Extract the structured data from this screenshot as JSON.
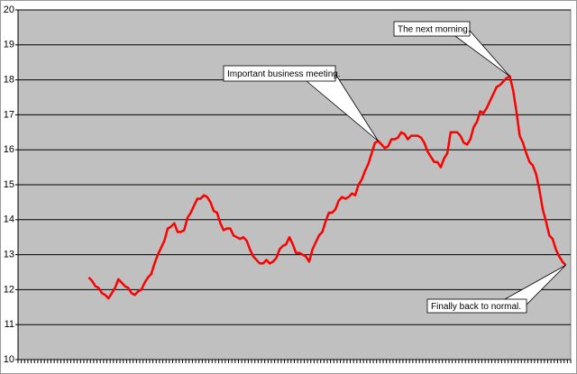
{
  "chart_data": {
    "type": "line",
    "categories": [
      null,
      null,
      null,
      null,
      null,
      null,
      null,
      null,
      null,
      null,
      null,
      null,
      null,
      null,
      null,
      null,
      null,
      null,
      null,
      null,
      null,
      null,
      null,
      null,
      null,
      null,
      null,
      null,
      null,
      null,
      null,
      null,
      null,
      null,
      null,
      null,
      null,
      null,
      null,
      null,
      null,
      null,
      null,
      null,
      null,
      null,
      null,
      null,
      null,
      null,
      null,
      null,
      null,
      null,
      null,
      null,
      null,
      null,
      null,
      null,
      null,
      null,
      null,
      null,
      null,
      null,
      null,
      null,
      null,
      null,
      null,
      null,
      null,
      null,
      null,
      null,
      null,
      null,
      null,
      null,
      null,
      null,
      null,
      null,
      null,
      null,
      null,
      null,
      null,
      null,
      null,
      null,
      null,
      null,
      null,
      null,
      null,
      null,
      null,
      null,
      null,
      null,
      null,
      null,
      null,
      null,
      null,
      null,
      null,
      null,
      null,
      null,
      null,
      null,
      null,
      null,
      null,
      null,
      null,
      null,
      null,
      null,
      null,
      null,
      null,
      null,
      null,
      null,
      null,
      null,
      null,
      null,
      null,
      null,
      null,
      null,
      null,
      null,
      null,
      null,
      null,
      null,
      null,
      null,
      null,
      null,
      null,
      null,
      null,
      null,
      null,
      null,
      null,
      null,
      null,
      null,
      null,
      null,
      null,
      null,
      null,
      null,
      null,
      null,
      null,
      null,
      null,
      null
    ],
    "values": [
      null,
      null,
      null,
      null,
      null,
      null,
      null,
      null,
      null,
      null,
      null,
      null,
      null,
      null,
      null,
      null,
      null,
      null,
      null,
      null,
      null,
      12.35,
      12.25,
      12.1,
      12.05,
      11.9,
      11.85,
      11.75,
      11.9,
      12.05,
      12.3,
      12.2,
      12.1,
      12.05,
      11.9,
      11.85,
      11.95,
      12.0,
      12.2,
      12.35,
      12.45,
      12.75,
      13.0,
      13.2,
      13.4,
      13.75,
      13.8,
      13.9,
      13.65,
      13.65,
      13.7,
      14.05,
      14.2,
      14.4,
      14.6,
      14.6,
      14.7,
      14.65,
      14.5,
      14.25,
      14.2,
      13.9,
      13.7,
      13.75,
      13.75,
      13.55,
      13.5,
      13.45,
      13.5,
      13.4,
      13.15,
      12.95,
      12.85,
      12.75,
      12.75,
      12.85,
      12.75,
      12.8,
      12.9,
      13.15,
      13.25,
      13.3,
      13.5,
      13.3,
      13.05,
      13.05,
      13.0,
      12.95,
      12.8,
      13.15,
      13.35,
      13.55,
      13.65,
      13.95,
      14.2,
      14.2,
      14.3,
      14.55,
      14.65,
      14.6,
      14.65,
      14.75,
      14.7,
      15.0,
      15.15,
      15.4,
      15.6,
      15.9,
      16.2,
      16.25,
      16.15,
      16.05,
      16.1,
      16.3,
      16.3,
      16.35,
      16.5,
      16.45,
      16.3,
      16.4,
      16.4,
      16.4,
      16.35,
      16.2,
      15.95,
      15.8,
      15.65,
      15.65,
      15.5,
      15.75,
      15.9,
      16.5,
      16.5,
      16.5,
      16.4,
      16.2,
      16.15,
      16.3,
      16.65,
      16.8,
      17.1,
      17.05,
      17.2,
      17.4,
      17.6,
      17.8,
      17.85,
      17.95,
      18.05,
      18.1,
      17.7,
      17.1,
      16.4,
      16.2,
      15.9,
      15.65,
      15.55,
      15.3,
      14.85,
      14.3,
      13.95,
      13.55,
      13.45,
      13.15,
      12.95,
      12.8,
      12.7,
      null
    ],
    "color": "#ff0000",
    "ylim": [
      10,
      20
    ],
    "yticks": [
      10,
      11,
      12,
      13,
      14,
      15,
      16,
      17,
      18,
      19,
      20
    ],
    "grid": true,
    "annotations": [
      "Important business meeting.",
      "The next morning.",
      "Finally back to normal."
    ]
  }
}
